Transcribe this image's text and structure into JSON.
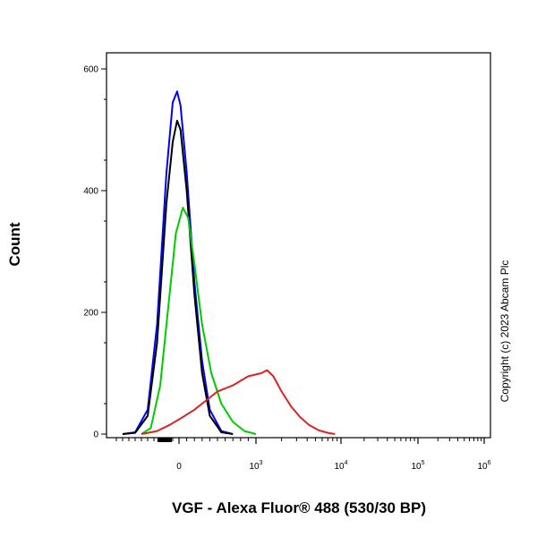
{
  "chart_data": {
    "type": "line",
    "xlabel": "VGF - Alexa Fluor® 488 (530/30 BP)",
    "ylabel": "Count",
    "ylim": [
      0,
      630
    ],
    "y_ticks": [
      {
        "value": 0,
        "label": "0"
      },
      {
        "value": 200,
        "label": "200"
      },
      {
        "value": 400,
        "label": "400"
      },
      {
        "value": 600,
        "label": "600"
      }
    ],
    "x_scale": "biexponential",
    "x_ticks": [
      {
        "value": "0",
        "label": "0"
      },
      {
        "value": "10^3",
        "base": "10",
        "exp": "3"
      },
      {
        "value": "10^4",
        "base": "10",
        "exp": "4"
      },
      {
        "value": "10^5",
        "base": "10",
        "exp": "5"
      },
      {
        "value": "10^6",
        "base": "10",
        "exp": "6"
      }
    ],
    "annotation": "Copyright (c) 2023 Abcam Plc",
    "grid": false,
    "series": [
      {
        "color": "#0000ff",
        "points": [
          [
            -900,
            0
          ],
          [
            -700,
            3
          ],
          [
            -500,
            40
          ],
          [
            -350,
            180
          ],
          [
            -200,
            430
          ],
          [
            -100,
            545
          ],
          [
            -30,
            563
          ],
          [
            20,
            540
          ],
          [
            100,
            430
          ],
          [
            200,
            250
          ],
          [
            300,
            120
          ],
          [
            400,
            40
          ],
          [
            550,
            5
          ],
          [
            700,
            0
          ]
        ]
      },
      {
        "color": "#000000",
        "points": [
          [
            -900,
            0
          ],
          [
            -700,
            2
          ],
          [
            -500,
            30
          ],
          [
            -350,
            150
          ],
          [
            -200,
            380
          ],
          [
            -100,
            480
          ],
          [
            -30,
            515
          ],
          [
            20,
            500
          ],
          [
            100,
            400
          ],
          [
            200,
            230
          ],
          [
            300,
            100
          ],
          [
            400,
            30
          ],
          [
            550,
            3
          ],
          [
            700,
            0
          ]
        ]
      },
      {
        "color": "#00cc00",
        "points": [
          [
            -600,
            0
          ],
          [
            -450,
            10
          ],
          [
            -300,
            80
          ],
          [
            -150,
            230
          ],
          [
            -50,
            330
          ],
          [
            50,
            372
          ],
          [
            120,
            355
          ],
          [
            200,
            280
          ],
          [
            300,
            180
          ],
          [
            420,
            100
          ],
          [
            550,
            50
          ],
          [
            700,
            20
          ],
          [
            850,
            5
          ],
          [
            1000,
            0
          ]
        ]
      },
      {
        "color": "#dd2222",
        "points": [
          [
            -600,
            0
          ],
          [
            -350,
            5
          ],
          [
            -150,
            15
          ],
          [
            50,
            28
          ],
          [
            200,
            40
          ],
          [
            350,
            55
          ],
          [
            500,
            70
          ],
          [
            700,
            80
          ],
          [
            900,
            95
          ],
          [
            1150,
            100
          ],
          [
            1350,
            105
          ],
          [
            1600,
            95
          ],
          [
            2000,
            70
          ],
          [
            2600,
            45
          ],
          [
            3300,
            28
          ],
          [
            4200,
            15
          ],
          [
            5500,
            6
          ],
          [
            7000,
            2
          ],
          [
            8500,
            0
          ]
        ]
      }
    ]
  }
}
